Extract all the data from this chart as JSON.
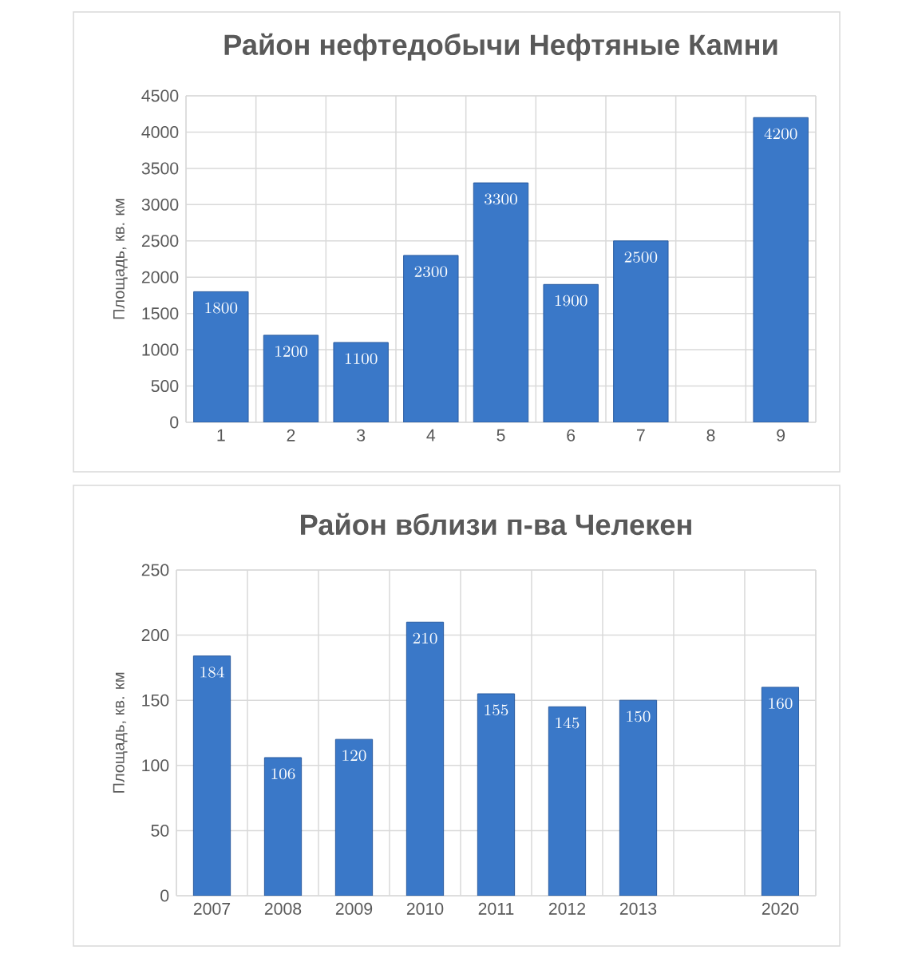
{
  "chart_data": [
    {
      "type": "bar",
      "title": "Район нефтедобычи Нефтяные Камни",
      "ylabel": "Площадь, кв. км",
      "categories": [
        "1",
        "2",
        "3",
        "4",
        "5",
        "6",
        "7",
        "8",
        "9"
      ],
      "values": [
        1800,
        1200,
        1100,
        2300,
        3300,
        1900,
        2500,
        null,
        4200
      ],
      "color": "#3a78c8",
      "ylim": [
        0,
        4500
      ],
      "yticks": [
        0,
        500,
        1000,
        1500,
        2000,
        2500,
        3000,
        3500,
        4000,
        4500
      ],
      "grid": true,
      "data_labels": true
    },
    {
      "type": "bar",
      "title": "Район вблизи п-ва Челекен",
      "ylabel": "Площадь, кв. км",
      "categories": [
        "2007",
        "2008",
        "2009",
        "2010",
        "2011",
        "2012",
        "2013",
        null,
        "2020"
      ],
      "values": [
        184,
        106,
        120,
        210,
        155,
        145,
        150,
        null,
        160
      ],
      "color": "#3a78c8",
      "ylim": [
        0,
        250
      ],
      "yticks": [
        0,
        50,
        100,
        150,
        200,
        250
      ],
      "grid": true,
      "data_labels": true
    }
  ]
}
